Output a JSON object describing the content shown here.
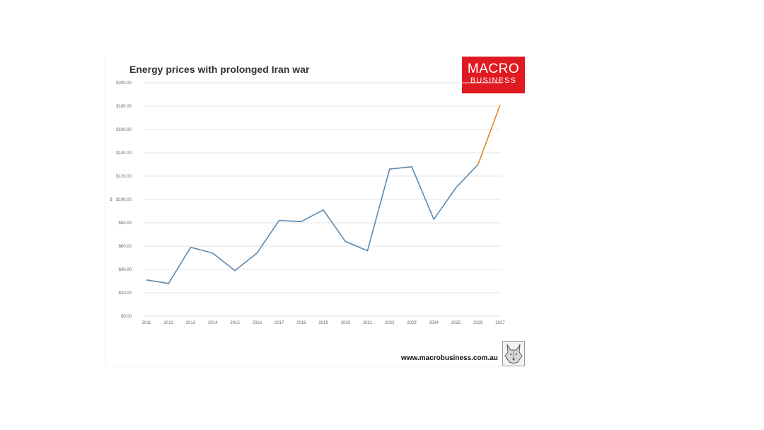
{
  "chart_data": {
    "type": "line",
    "title": "Energy prices with prolonged Iran war",
    "ylabel": "$",
    "ylim": [
      0,
      200
    ],
    "yticks": [
      "$0.00",
      "$20.00",
      "$40.00",
      "$60.00",
      "$80.00",
      "$100.00",
      "$120.00",
      "$140.00",
      "$160.00",
      "$180.00",
      "$200.00"
    ],
    "categories": [
      "2011",
      "2012",
      "2013",
      "2014",
      "2015",
      "2016",
      "2017",
      "2018",
      "2019",
      "2020",
      "2021",
      "2022",
      "2023",
      "2024",
      "2025",
      "2026",
      "2027"
    ],
    "series": [
      {
        "values": [
          31,
          28,
          59,
          54,
          39,
          54,
          82,
          81,
          91,
          64,
          56,
          126,
          128,
          83,
          110,
          130,
          null
        ],
        "color": "#5b87ad"
      },
      {
        "values": [
          null,
          null,
          null,
          null,
          null,
          null,
          null,
          null,
          null,
          null,
          null,
          null,
          null,
          null,
          null,
          130,
          181
        ],
        "color": "#e0852a"
      }
    ],
    "grid": true,
    "legend": "none"
  },
  "brand": {
    "line1": "MACRO",
    "line2": "BUSINESS",
    "color": "#e01a21"
  },
  "website": "www.macrobusiness.com.au",
  "logo_icon": "wolf-icon"
}
